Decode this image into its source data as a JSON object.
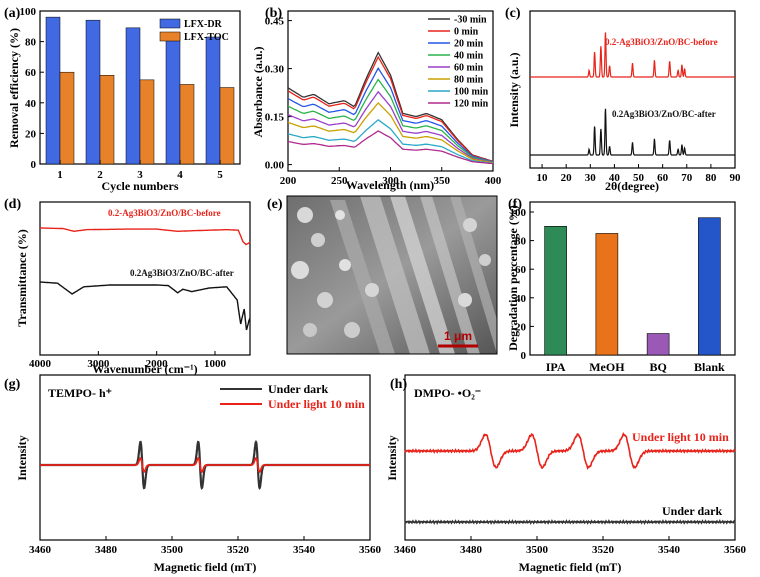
{
  "chart_data": [
    {
      "id": "a",
      "type": "bar",
      "panel_label": "(a)",
      "xlabel": "Cycle numbers",
      "ylabel": "Removal efficiency (%)",
      "ylim": [
        0,
        100
      ],
      "yticks": [
        0,
        20,
        40,
        60,
        80,
        100
      ],
      "categories": [
        "1",
        "2",
        "3",
        "4",
        "5"
      ],
      "series": [
        {
          "name": "LFX-DR",
          "color": "#4169e1",
          "values": [
            96,
            94,
            89,
            86,
            83
          ]
        },
        {
          "name": "LFX-TOC",
          "color": "#e8822a",
          "values": [
            60,
            58,
            55,
            52,
            50
          ]
        }
      ]
    },
    {
      "id": "b",
      "type": "line",
      "panel_label": "(b)",
      "xlabel": "Wavelength (nm)",
      "ylabel": "Absorbance (a.u.)",
      "xlim": [
        200,
        400
      ],
      "xticks": [
        200,
        250,
        300,
        350,
        400
      ],
      "ylim": [
        -0.02,
        0.48
      ],
      "yticks": [
        "0.00",
        "0.15",
        "0.30",
        "0.45"
      ],
      "series": [
        {
          "name": "-30 min",
          "color": "#333333",
          "scale": 1.0
        },
        {
          "name": "0    min",
          "color": "#e8231a",
          "scale": 0.96
        },
        {
          "name": "20  min",
          "color": "#2456e8",
          "scale": 0.86
        },
        {
          "name": "40  min",
          "color": "#2bb34a",
          "scale": 0.76
        },
        {
          "name": "60  min",
          "color": "#9b3fc9",
          "scale": 0.65
        },
        {
          "name": "80  min",
          "color": "#c9a100",
          "scale": 0.55
        },
        {
          "name": "100 min",
          "color": "#2aa9c9",
          "scale": 0.4
        },
        {
          "name": "120 min",
          "color": "#b02a8e",
          "scale": 0.3
        }
      ],
      "base_spectrum": {
        "x": [
          200,
          215,
          225,
          240,
          255,
          265,
          275,
          288,
          300,
          312,
          325,
          335,
          350,
          365,
          380,
          400
        ],
        "y": [
          0.24,
          0.21,
          0.22,
          0.19,
          0.2,
          0.18,
          0.26,
          0.35,
          0.28,
          0.16,
          0.15,
          0.16,
          0.14,
          0.08,
          0.03,
          0.01
        ]
      }
    },
    {
      "id": "c",
      "type": "line",
      "panel_label": "(c)",
      "xlabel": "2θ(degree)",
      "ylabel": "Intensity (a.u.)",
      "xlim": [
        5,
        90
      ],
      "xticks": [
        10,
        20,
        30,
        40,
        50,
        60,
        70,
        80,
        90
      ],
      "series": [
        {
          "name": "0.2-Ag3BiO3/ZnO/BC-before",
          "color": "#e8231a",
          "peaks": [
            [
              29.5,
              0.12
            ],
            [
              31.8,
              0.45
            ],
            [
              34.4,
              0.55
            ],
            [
              36.3,
              0.8
            ],
            [
              38.0,
              0.2
            ],
            [
              47.5,
              0.25
            ],
            [
              56.6,
              0.3
            ],
            [
              62.9,
              0.28
            ],
            [
              66.4,
              0.12
            ],
            [
              68.0,
              0.22
            ],
            [
              69.1,
              0.15
            ]
          ]
        },
        {
          "name": "0.2Ag3BiO3/ZnO/BC-after",
          "color": "#111111",
          "peaks": [
            [
              29.5,
              0.1
            ],
            [
              31.8,
              0.5
            ],
            [
              34.4,
              0.45
            ],
            [
              36.3,
              0.8
            ],
            [
              38.0,
              0.15
            ],
            [
              47.5,
              0.22
            ],
            [
              56.6,
              0.28
            ],
            [
              62.9,
              0.25
            ],
            [
              66.4,
              0.1
            ],
            [
              68.0,
              0.18
            ],
            [
              69.1,
              0.12
            ]
          ]
        }
      ]
    },
    {
      "id": "d",
      "type": "line",
      "panel_label": "(d)",
      "xlabel": "Wavenumber (cm⁻¹)",
      "ylabel": "Transmittance (%)",
      "xlim": [
        4000,
        400
      ],
      "xticks": [
        4000,
        3000,
        2000,
        1000
      ],
      "series": [
        {
          "name": "0.2-Ag3BiO3/ZnO/BC-before",
          "color": "#e8231a",
          "points": [
            [
              4000,
              0.0
            ],
            [
              3600,
              0.01
            ],
            [
              3420,
              0.06
            ],
            [
              3200,
              0.03
            ],
            [
              2500,
              0.02
            ],
            [
              2000,
              0.02
            ],
            [
              1640,
              0.06
            ],
            [
              1400,
              0.05
            ],
            [
              1100,
              0.04
            ],
            [
              800,
              0.03
            ],
            [
              600,
              0.04
            ],
            [
              520,
              0.25
            ],
            [
              470,
              0.3
            ],
            [
              430,
              0.28
            ],
            [
              400,
              0.26
            ]
          ]
        },
        {
          "name": "0.2Ag3BiO3/ZnO/BC-after",
          "color": "#111111",
          "points": [
            [
              4000,
              0.0
            ],
            [
              3700,
              0.02
            ],
            [
              3450,
              0.2
            ],
            [
              3250,
              0.08
            ],
            [
              2800,
              0.05
            ],
            [
              2000,
              0.05
            ],
            [
              1800,
              0.06
            ],
            [
              1640,
              0.18
            ],
            [
              1550,
              0.12
            ],
            [
              1400,
              0.16
            ],
            [
              1100,
              0.1
            ],
            [
              800,
              0.08
            ],
            [
              620,
              0.3
            ],
            [
              560,
              0.7
            ],
            [
              500,
              0.45
            ],
            [
              460,
              0.8
            ],
            [
              420,
              0.65
            ],
            [
              400,
              0.6
            ]
          ]
        }
      ]
    },
    {
      "id": "f",
      "type": "bar",
      "panel_label": "(f)",
      "xlabel": "",
      "ylabel": "Degradation percentage (%)",
      "ylim": [
        0,
        100
      ],
      "yticks": [
        0,
        20,
        40,
        60,
        80,
        100
      ],
      "categories": [
        "IPA",
        "MeOH",
        "BQ",
        "Blank"
      ],
      "values": [
        90,
        85,
        15,
        96
      ],
      "colors": [
        "#2e8b57",
        "#e8731a",
        "#9b59b6",
        "#2456c9"
      ]
    },
    {
      "id": "g",
      "type": "line",
      "panel_label": "(g)",
      "title": "TEMPO- h⁺",
      "xlabel": "Magnetic field (mT)",
      "ylabel": "Intensity",
      "xlim": [
        3460,
        3560
      ],
      "xticks": [
        3460,
        3480,
        3500,
        3520,
        3540,
        3560
      ],
      "lines_at": [
        3491,
        3508.5,
        3526
      ],
      "series": [
        {
          "name": "Under dark",
          "color": "#333333",
          "amplitude": 1.0
        },
        {
          "name": "Under light 10 min",
          "color": "#e8231a",
          "amplitude": 0.3
        }
      ]
    },
    {
      "id": "h",
      "type": "line",
      "panel_label": "(h)",
      "title": "DMPO- •O₂⁻",
      "xlabel": "Magnetic field (mT)",
      "ylabel": "Intensity",
      "xlim": [
        3460,
        3560
      ],
      "xticks": [
        3460,
        3480,
        3500,
        3520,
        3540,
        3560
      ],
      "lines_at": [
        3486,
        3500,
        3514,
        3528
      ],
      "series": [
        {
          "name": "Under light 10 min",
          "color": "#e8231a",
          "amplitude": 1.0
        },
        {
          "name": "Under dark",
          "color": "#333333",
          "amplitude": 0.0
        }
      ]
    }
  ],
  "sem": {
    "panel_label": "(e)",
    "scale_text": "1 μm"
  }
}
